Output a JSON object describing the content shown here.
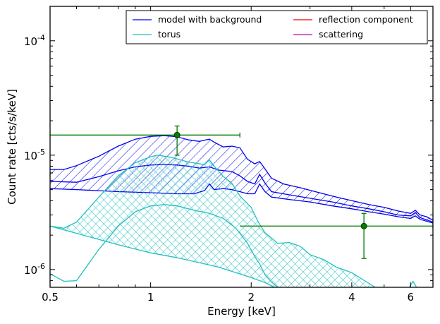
{
  "chart_data": {
    "type": "line",
    "xlabel": "Energy [keV]",
    "ylabel": "Count rate [cts/s/keV]",
    "xscale": "log",
    "yscale": "log",
    "xlim": [
      0.5,
      7.0
    ],
    "ylim": [
      7e-07,
      0.0002
    ],
    "x_ticks": [
      {
        "value": 0.5,
        "label": "0.5"
      },
      {
        "value": 1,
        "label": "1"
      },
      {
        "value": 2,
        "label": "2"
      },
      {
        "value": 4,
        "label": "4"
      },
      {
        "value": 6,
        "label": "6"
      }
    ],
    "y_ticks": [
      {
        "value": 1e-06,
        "base": "10",
        "exp": "-6"
      },
      {
        "value": 1e-05,
        "base": "10",
        "exp": "-5"
      },
      {
        "value": 0.0001,
        "base": "10",
        "exp": "-4"
      }
    ],
    "legend": {
      "placement": "top-right",
      "columns": 2,
      "entries": [
        {
          "label": "model with background",
          "color": "#0000ee"
        },
        {
          "label": "torus",
          "color": "#1fbfbf"
        },
        {
          "label": "reflection component",
          "color": "#ee0000"
        },
        {
          "label": "scattering",
          "color": "#bf00bf"
        }
      ]
    },
    "series": [
      {
        "name": "model with background",
        "color": "#0000ee",
        "hatch": "diagonal",
        "upper": [
          [
            0.5,
            7.5e-06
          ],
          [
            0.55,
            7.5e-06
          ],
          [
            0.6,
            8.1e-06
          ],
          [
            0.7,
            9.8e-06
          ],
          [
            0.8,
            1.2e-05
          ],
          [
            0.9,
            1.38e-05
          ],
          [
            1.0,
            1.46e-05
          ],
          [
            1.1,
            1.48e-05
          ],
          [
            1.2,
            1.45e-05
          ],
          [
            1.3,
            1.36e-05
          ],
          [
            1.4,
            1.32e-05
          ],
          [
            1.46,
            1.36e-05
          ],
          [
            1.5,
            1.38e-05
          ],
          [
            1.55,
            1.3e-05
          ],
          [
            1.65,
            1.18e-05
          ],
          [
            1.75,
            1.2e-05
          ],
          [
            1.85,
            1.16e-05
          ],
          [
            1.95,
            9.2e-06
          ],
          [
            2.05,
            8.4e-06
          ],
          [
            2.12,
            8.8e-06
          ],
          [
            2.2,
            7.6e-06
          ],
          [
            2.3,
            6.3e-06
          ],
          [
            2.5,
            5.6e-06
          ],
          [
            2.8,
            5.2e-06
          ],
          [
            3.2,
            4.7e-06
          ],
          [
            3.6,
            4.3e-06
          ],
          [
            4.0,
            4e-06
          ],
          [
            4.5,
            3.7e-06
          ],
          [
            5.0,
            3.5e-06
          ],
          [
            5.5,
            3.25e-06
          ],
          [
            6.0,
            3.1e-06
          ],
          [
            6.2,
            3.3e-06
          ],
          [
            6.4,
            3e-06
          ],
          [
            6.7,
            2.9e-06
          ],
          [
            7.0,
            2.7e-06
          ]
        ],
        "middle": [
          [
            0.5,
            5.9e-06
          ],
          [
            0.6,
            5.8e-06
          ],
          [
            0.7,
            6.5e-06
          ],
          [
            0.8,
            7.3e-06
          ],
          [
            0.9,
            7.9e-06
          ],
          [
            1.0,
            8.2e-06
          ],
          [
            1.1,
            8.3e-06
          ],
          [
            1.2,
            8.2e-06
          ],
          [
            1.3,
            8e-06
          ],
          [
            1.4,
            7.7e-06
          ],
          [
            1.5,
            7.9e-06
          ],
          [
            1.6,
            7.4e-06
          ],
          [
            1.75,
            7.2e-06
          ],
          [
            1.85,
            6.6e-06
          ],
          [
            1.95,
            5.9e-06
          ],
          [
            2.05,
            5.6e-06
          ],
          [
            2.12,
            6.8e-06
          ],
          [
            2.2,
            5.7e-06
          ],
          [
            2.3,
            4.8e-06
          ],
          [
            2.6,
            4.5e-06
          ],
          [
            3.0,
            4.2e-06
          ],
          [
            3.5,
            3.9e-06
          ],
          [
            4.0,
            3.6e-06
          ],
          [
            4.5,
            3.4e-06
          ],
          [
            5.0,
            3.2e-06
          ],
          [
            5.5,
            3e-06
          ],
          [
            6.0,
            2.95e-06
          ],
          [
            6.2,
            3.15e-06
          ],
          [
            6.4,
            2.85e-06
          ],
          [
            7.0,
            2.6e-06
          ]
        ],
        "lower": [
          [
            0.5,
            5.1e-06
          ],
          [
            0.6,
            5e-06
          ],
          [
            0.8,
            4.8e-06
          ],
          [
            1.0,
            4.7e-06
          ],
          [
            1.2,
            4.6e-06
          ],
          [
            1.35,
            4.6e-06
          ],
          [
            1.45,
            4.9e-06
          ],
          [
            1.5,
            5.6e-06
          ],
          [
            1.55,
            5e-06
          ],
          [
            1.65,
            5.1e-06
          ],
          [
            1.75,
            5e-06
          ],
          [
            1.85,
            4.8e-06
          ],
          [
            1.95,
            4.6e-06
          ],
          [
            2.05,
            4.6e-06
          ],
          [
            2.12,
            5.6e-06
          ],
          [
            2.2,
            4.8e-06
          ],
          [
            2.3,
            4.3e-06
          ],
          [
            2.6,
            4.1e-06
          ],
          [
            3.0,
            3.9e-06
          ],
          [
            3.5,
            3.6e-06
          ],
          [
            4.0,
            3.4e-06
          ],
          [
            4.5,
            3.2e-06
          ],
          [
            5.0,
            3.05e-06
          ],
          [
            5.5,
            2.9e-06
          ],
          [
            6.0,
            2.8e-06
          ],
          [
            6.2,
            2.95e-06
          ],
          [
            6.4,
            2.75e-06
          ],
          [
            7.0,
            2.55e-06
          ]
        ]
      },
      {
        "name": "torus",
        "color": "#1fbfbf",
        "hatch": "crosshatch",
        "upper": [
          [
            0.5,
            2.4e-06
          ],
          [
            0.55,
            2.3e-06
          ],
          [
            0.6,
            2.6e-06
          ],
          [
            0.7,
            4.3e-06
          ],
          [
            0.8,
            6.6e-06
          ],
          [
            0.9,
            8.6e-06
          ],
          [
            1.0,
            9.7e-06
          ],
          [
            1.05,
            1e-05
          ],
          [
            1.15,
            9.6e-06
          ],
          [
            1.3,
            8.7e-06
          ],
          [
            1.45,
            8.3e-06
          ],
          [
            1.5,
            9.1e-06
          ],
          [
            1.55,
            8e-06
          ],
          [
            1.65,
            6.5e-06
          ],
          [
            1.75,
            5.7e-06
          ],
          [
            1.85,
            4.4e-06
          ],
          [
            2.0,
            3.5e-06
          ],
          [
            2.1,
            2.6e-06
          ],
          [
            2.2,
            2.1e-06
          ],
          [
            2.4,
            1.7e-06
          ],
          [
            2.6,
            1.72e-06
          ],
          [
            2.8,
            1.6e-06
          ],
          [
            3.0,
            1.35e-06
          ],
          [
            3.3,
            1.22e-06
          ],
          [
            3.6,
            1.05e-06
          ],
          [
            4.0,
            9.4e-07
          ],
          [
            4.4,
            7.9e-07
          ],
          [
            4.7,
            7e-07
          ]
        ],
        "middle": [
          [
            0.5,
            9.2e-07
          ],
          [
            0.55,
            7.9e-07
          ],
          [
            0.6,
            8e-07
          ],
          [
            0.7,
            1.5e-06
          ],
          [
            0.8,
            2.4e-06
          ],
          [
            0.9,
            3.2e-06
          ],
          [
            1.0,
            3.6e-06
          ],
          [
            1.1,
            3.7e-06
          ],
          [
            1.2,
            3.6e-06
          ],
          [
            1.35,
            3.3e-06
          ],
          [
            1.5,
            3.1e-06
          ],
          [
            1.65,
            2.8e-06
          ],
          [
            1.8,
            2.3e-06
          ],
          [
            1.95,
            1.7e-06
          ],
          [
            2.05,
            1.3e-06
          ],
          [
            2.12,
            1.12e-06
          ],
          [
            2.2,
            9e-07
          ],
          [
            2.3,
            7.8e-07
          ],
          [
            2.4,
            7e-07
          ]
        ],
        "lower": [
          [
            0.5,
            2.4e-06
          ],
          [
            0.8,
            1.65e-06
          ],
          [
            1.0,
            1.4e-06
          ],
          [
            1.2,
            1.27e-06
          ],
          [
            1.4,
            1.15e-06
          ],
          [
            1.6,
            1.05e-06
          ],
          [
            1.8,
            9.4e-07
          ],
          [
            2.0,
            8.5e-07
          ],
          [
            2.2,
            7.7e-07
          ],
          [
            2.35,
            7e-07
          ]
        ]
      },
      {
        "name": "torus spike",
        "color": "#1fbfbf",
        "points": [
          [
            5.95,
            7e-07
          ],
          [
            6.1,
            7.9e-07
          ],
          [
            6.25,
            7e-07
          ]
        ]
      }
    ],
    "data_points": [
      {
        "x": 1.2,
        "y": 1.5e-05,
        "xlo": 0.5,
        "xhi": 1.85,
        "ylo": 1e-05,
        "yhi": 1.8e-05,
        "color": "#007700"
      },
      {
        "x": 4.35,
        "y": 2.4e-06,
        "xlo": 1.85,
        "xhi": 7.0,
        "ylo": 1.25e-06,
        "yhi": 3.1e-06,
        "color": "#007700"
      }
    ]
  }
}
